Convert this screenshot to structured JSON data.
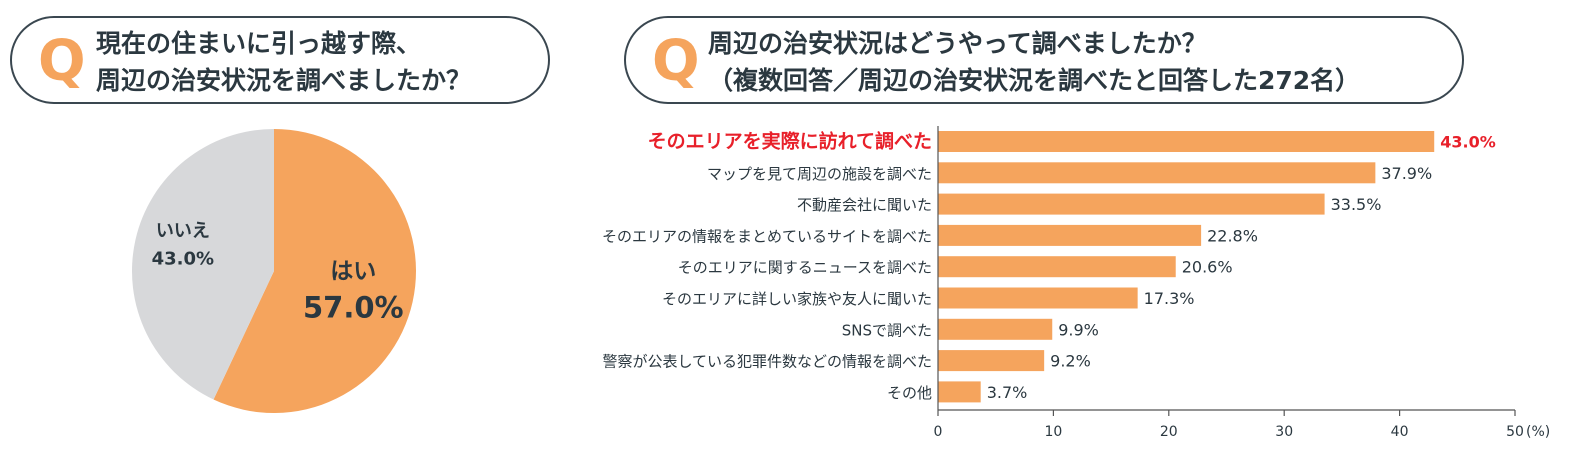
{
  "left_question": {
    "q_mark": "Q",
    "line1": "現在の住まいに引っ越す際、",
    "line2": "周辺の治安状況を調べましたか？"
  },
  "right_question": {
    "q_mark": "Q",
    "line1": "周辺の治安状況はどうやって調べましたか？",
    "line2": "（複数回答／周辺の治安状況を調べたと回答した272名）"
  },
  "colors": {
    "accent": "#f5a45d",
    "pie_no": "#d7d8da",
    "highlight": "#e8202a",
    "text": "#2b3840"
  },
  "chart_data": [
    {
      "type": "pie",
      "slices": [
        {
          "label": "はい",
          "value": 57.0,
          "value_label": "57.0%",
          "color": "#f5a45d"
        },
        {
          "label": "いいえ",
          "value": 43.0,
          "value_label": "43.0%",
          "color": "#d7d8da"
        }
      ]
    },
    {
      "type": "bar",
      "orientation": "horizontal",
      "categories": [
        "そのエリアを実際に訪れて調べた",
        "マップを見て周辺の施設を調べた",
        "不動産会社に聞いた",
        "そのエリアの情報をまとめているサイトを調べた",
        "そのエリアに関するニュースを調べた",
        "そのエリアに詳しい家族や友人に聞いた",
        "SNSで調べた",
        "警察が公表している犯罪件数などの情報を調べた",
        "その他"
      ],
      "values": [
        43.0,
        37.9,
        33.5,
        22.8,
        20.6,
        17.3,
        9.9,
        9.2,
        3.7
      ],
      "value_labels": [
        "43.0%",
        "37.9%",
        "33.5%",
        "22.8%",
        "20.6%",
        "17.3%",
        "9.9%",
        "9.2%",
        "3.7%"
      ],
      "highlight_index": 0,
      "xlim": [
        0,
        50
      ],
      "xticks": [
        0,
        10,
        20,
        30,
        40,
        50
      ],
      "xtick_labels": [
        "0",
        "10",
        "20",
        "30",
        "40",
        "50"
      ],
      "x_unit": "(%)",
      "bar_color": "#f5a45d"
    }
  ]
}
